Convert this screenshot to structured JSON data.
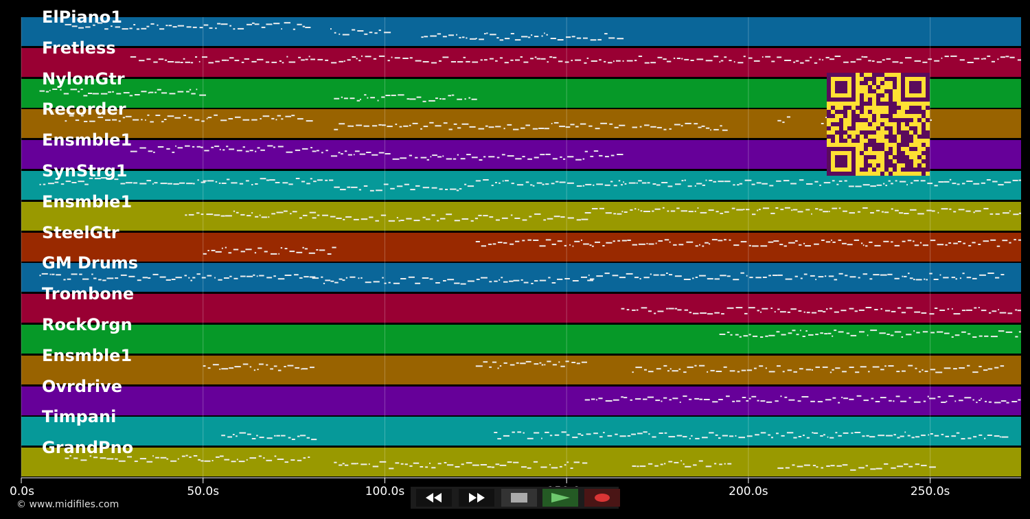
{
  "timeline": {
    "axis_max_seconds": 275,
    "tick_values": [
      0,
      50,
      100,
      150,
      200,
      250
    ],
    "tick_labels": [
      "0.0s",
      "50.0s",
      "100.0s",
      "150.0s",
      "200.0s",
      "250.0s"
    ]
  },
  "tracks": [
    {
      "name": "ElPiano1",
      "color": "#0a6699"
    },
    {
      "name": "Fretless",
      "color": "#990033"
    },
    {
      "name": "NylonGtr",
      "color": "#069928"
    },
    {
      "name": "Recorder",
      "color": "#996300"
    },
    {
      "name": "Ensmble1",
      "color": "#660099"
    },
    {
      "name": "SynStrg1",
      "color": "#069999"
    },
    {
      "name": "Ensmble1",
      "color": "#999900"
    },
    {
      "name": "SteelGtr",
      "color": "#992900"
    },
    {
      "name": "GM Drums",
      "color": "#0a6699"
    },
    {
      "name": "Trombone",
      "color": "#990033"
    },
    {
      "name": "RockOrgn",
      "color": "#069928"
    },
    {
      "name": "Ensmble1",
      "color": "#996300"
    },
    {
      "name": "Ovrdrive",
      "color": "#660099"
    },
    {
      "name": "Timpani",
      "color": "#069999"
    },
    {
      "name": "GrandPno",
      "color": "#999900"
    }
  ],
  "controls": {
    "rewind_icon": "rewind-icon",
    "fast_forward_icon": "fast-forward-icon",
    "stop_icon": "stop-icon",
    "play_icon": "play-icon",
    "record_icon": "record-icon",
    "play_color": "#6ec86e",
    "record_color": "#d93535"
  },
  "qr_code": {
    "foreground": "#5a0b5c",
    "background": "#ffe033"
  },
  "copyright": "© www.midifiles.com"
}
